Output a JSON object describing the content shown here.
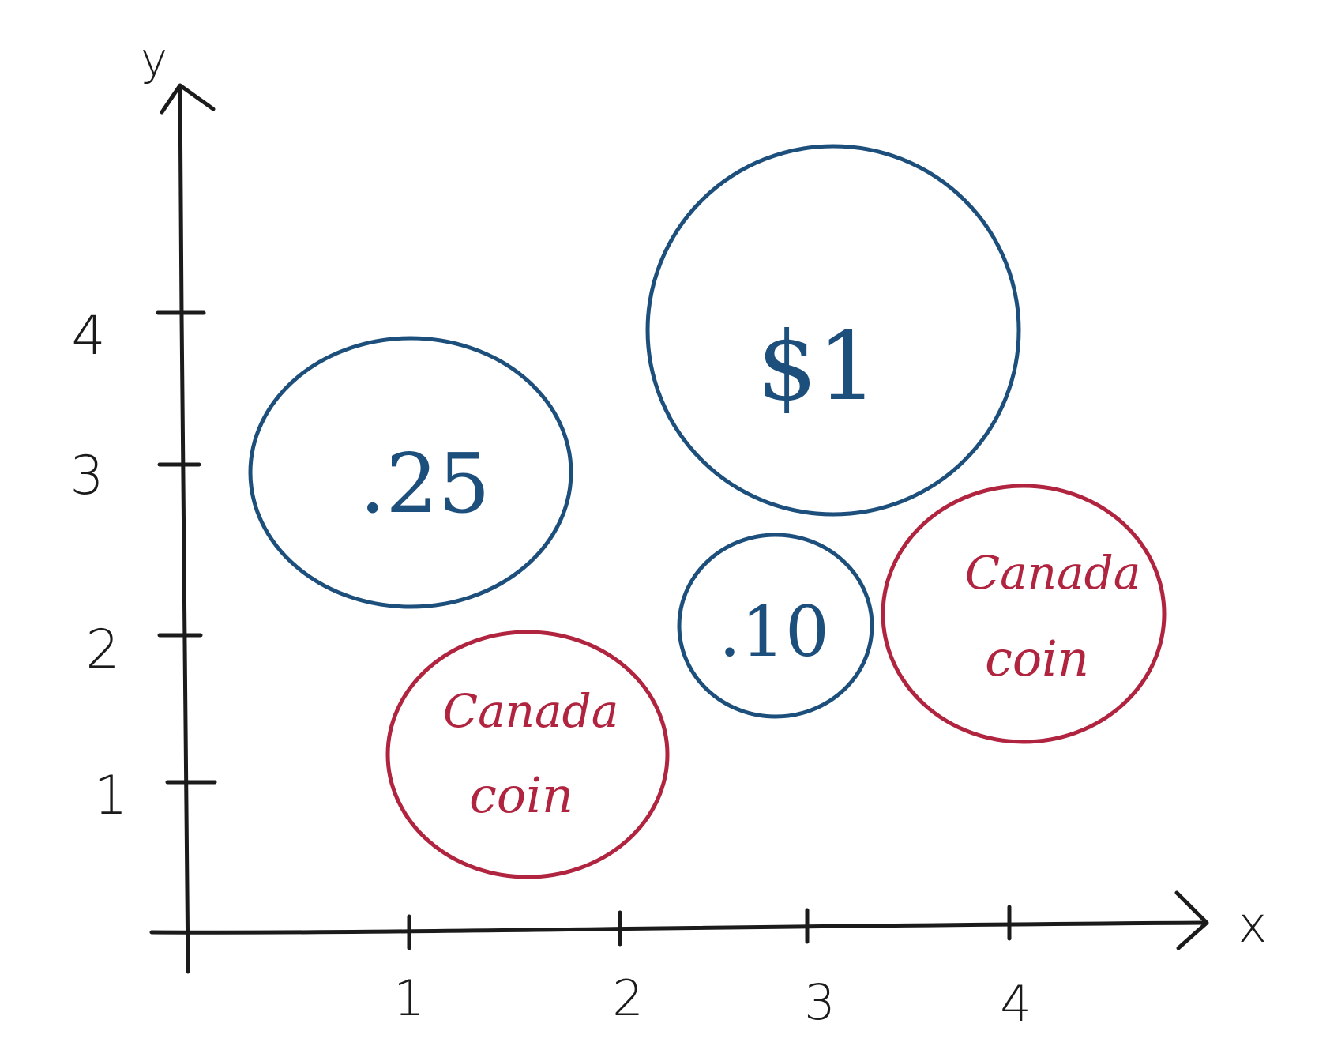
{
  "diagram": {
    "axes": {
      "x_label": "x",
      "y_label": "y",
      "x_ticks": [
        "1",
        "2",
        "3",
        "4"
      ],
      "y_ticks": [
        "1",
        "2",
        "3",
        "4"
      ]
    },
    "colors": {
      "axis": "#1b1b1b",
      "us_coin": "#1d4f7c",
      "canada_coin": "#b0243f"
    },
    "coins": [
      {
        "id": "quarter",
        "kind": "us_coin",
        "label_lines": [
          ".25"
        ]
      },
      {
        "id": "dollar",
        "kind": "us_coin",
        "label_lines": [
          "$1"
        ]
      },
      {
        "id": "dime",
        "kind": "us_coin",
        "label_lines": [
          ".10"
        ]
      },
      {
        "id": "canada-left",
        "kind": "canada_coin",
        "label_lines": [
          "Canada",
          "coin"
        ]
      },
      {
        "id": "canada-right",
        "kind": "canada_coin",
        "label_lines": [
          "Canada",
          "coin"
        ]
      }
    ]
  }
}
